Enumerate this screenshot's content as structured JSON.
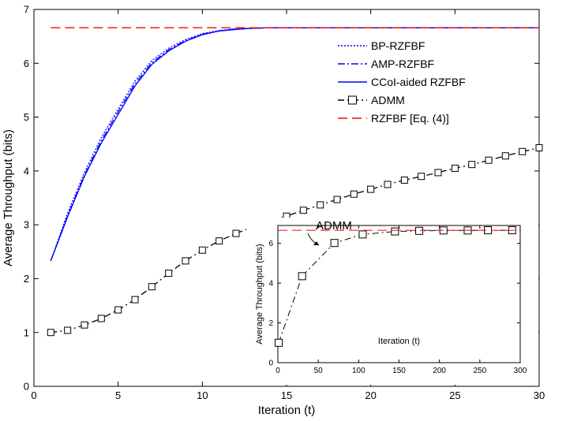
{
  "chart_data": [
    {
      "type": "line",
      "xlabel": "Iteration (t)",
      "ylabel": "Average Throughput (bits)",
      "xlim": [
        0,
        30
      ],
      "ylim": [
        0,
        7
      ],
      "xticks": [
        0,
        5,
        10,
        15,
        20,
        25,
        30
      ],
      "yticks": [
        0,
        1,
        2,
        3,
        4,
        5,
        6,
        7
      ],
      "legend": "top-right",
      "series": [
        {
          "name": "BP-RZFBF",
          "style": "dotted",
          "color": "#0000ff",
          "x": [
            1,
            2,
            3,
            4,
            5,
            6,
            7,
            8,
            9,
            10,
            11,
            12,
            13,
            14,
            15,
            20,
            25,
            30
          ],
          "y": [
            2.33,
            3.22,
            3.97,
            4.62,
            5.15,
            5.67,
            6.05,
            6.28,
            6.44,
            6.55,
            6.61,
            6.64,
            6.65,
            6.66,
            6.66,
            6.66,
            6.66,
            6.66
          ]
        },
        {
          "name": "AMP-RZFBF",
          "style": "dashdot",
          "color": "#0000ff",
          "x": [
            1,
            2,
            3,
            4,
            5,
            6,
            7,
            8,
            9,
            10,
            11,
            12,
            13,
            14,
            15,
            20,
            25,
            30
          ],
          "y": [
            2.33,
            3.17,
            3.92,
            4.56,
            5.1,
            5.62,
            6.01,
            6.25,
            6.42,
            6.54,
            6.6,
            6.64,
            6.65,
            6.66,
            6.66,
            6.66,
            6.66,
            6.66
          ]
        },
        {
          "name": "CCoI-aided RZFBF",
          "style": "solid",
          "color": "#0000ff",
          "x": [
            1,
            2,
            3,
            4,
            5,
            6,
            7,
            8,
            9,
            10,
            11,
            12,
            13,
            14,
            15,
            20,
            25,
            30
          ],
          "y": [
            2.33,
            3.15,
            3.9,
            4.52,
            5.05,
            5.58,
            5.98,
            6.23,
            6.41,
            6.53,
            6.6,
            6.63,
            6.65,
            6.66,
            6.66,
            6.66,
            6.66,
            6.66
          ]
        },
        {
          "name": "ADMM",
          "style": "dashdot-square",
          "color": "#000000",
          "x": [
            1,
            2,
            3,
            4,
            5,
            6,
            7,
            8,
            9,
            10,
            11,
            12,
            13,
            14,
            15,
            16,
            17,
            18,
            19,
            20,
            21,
            22,
            23,
            24,
            25,
            26,
            27,
            28,
            29,
            30
          ],
          "y": [
            1.0,
            1.04,
            1.14,
            1.26,
            1.42,
            1.61,
            1.85,
            2.1,
            2.33,
            2.53,
            2.7,
            2.84,
            2.96,
            3.06,
            3.16,
            3.27,
            3.37,
            3.47,
            3.57,
            3.66,
            3.75,
            3.83,
            3.9,
            3.97,
            4.05,
            4.12,
            4.2,
            4.28,
            4.36,
            4.43
          ]
        },
        {
          "name": "RZFBF [Eq. (4)]",
          "style": "dashed",
          "color": "#ff0000",
          "x": [
            1,
            30
          ],
          "y": [
            6.66,
            6.66
          ]
        }
      ]
    },
    {
      "type": "line",
      "xlabel": "Iteration (t)",
      "ylabel": "Average Throughput (bits)",
      "xlim": [
        0,
        300
      ],
      "ylim": [
        0,
        6.9
      ],
      "xticks": [
        0,
        50,
        100,
        150,
        200,
        250,
        300
      ],
      "yticks": [
        0,
        2,
        4,
        6
      ],
      "series": [
        {
          "style": "dashdot-square",
          "color": "#000000",
          "x": [
            1,
            30,
            70,
            105,
            145,
            175,
            205,
            235,
            260,
            290
          ],
          "y": [
            1.0,
            4.35,
            6.02,
            6.45,
            6.6,
            6.63,
            6.65,
            6.65,
            6.66,
            6.66
          ]
        },
        {
          "style": "dashed",
          "color": "#ff0000",
          "x": [
            0,
            300
          ],
          "y": [
            6.66,
            6.66
          ]
        }
      ]
    }
  ],
  "annotation": {
    "text": "ADMM"
  }
}
